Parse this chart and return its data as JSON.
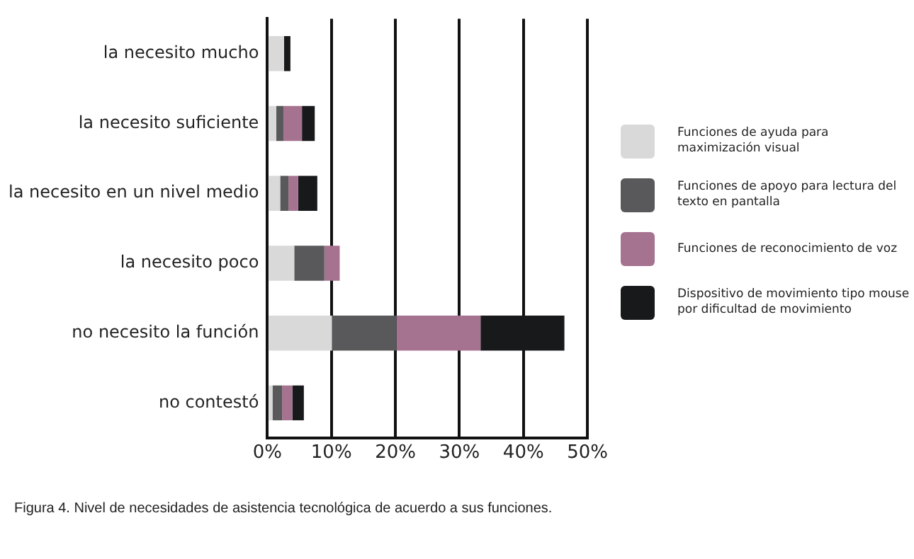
{
  "chart_data": {
    "type": "bar",
    "orientation": "horizontal",
    "stacked": true,
    "categories": [
      "la necesito mucho",
      "la necesito suficiente",
      "la necesito en un nivel medio",
      "la necesito poco",
      "no necesito la función",
      "no contestó"
    ],
    "series": [
      {
        "name": "Funciones de ayuda para maximización visual",
        "color": "#d9d9d9",
        "values": [
          2.6,
          1.4,
          2.0,
          4.2,
          10.1,
          0.8
        ]
      },
      {
        "name": "Funciones de apoyo para lectura del texto en pantalla",
        "color": "#59585a",
        "values": [
          null,
          1.1,
          1.3,
          4.7,
          10.1,
          1.5
        ]
      },
      {
        "name": "Funciones de reconocimiento de voz",
        "color": "#a5728f",
        "values": [
          null,
          2.9,
          1.5,
          2.4,
          13.1,
          1.6
        ]
      },
      {
        "name": "Dispositivo de movimiento tipo mouse por dificultad de movimiento",
        "color": "#18191b",
        "values": [
          1.0,
          2.0,
          3.0,
          null,
          13.1,
          1.8
        ]
      }
    ],
    "xlim": [
      0,
      50
    ],
    "xticks": [
      {
        "value": 0,
        "label": "0%"
      },
      {
        "value": 10,
        "label": "10%"
      },
      {
        "value": 20,
        "label": "20%"
      },
      {
        "value": 30,
        "label": "30%"
      },
      {
        "value": 40,
        "label": "40%"
      },
      {
        "value": 50,
        "label": "50%"
      }
    ],
    "grid": "x",
    "legend": "right",
    "annotations": [
      "Figura 4. Nivel de necesidades de asistencia tecnológica de acuerdo a sus funciones."
    ]
  }
}
